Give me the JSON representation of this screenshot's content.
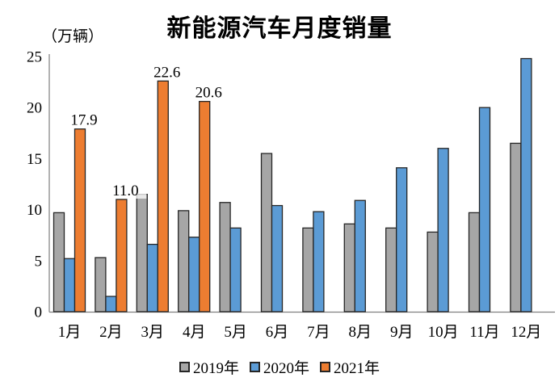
{
  "title": "新能源汽车月度销量",
  "axis_unit_label": "（万辆）",
  "chart_data": {
    "type": "bar",
    "title": "新能源汽车月度销量",
    "ylabel": "万辆",
    "xlabel": "",
    "categories": [
      "1月",
      "2月",
      "3月",
      "4月",
      "5月",
      "6月",
      "7月",
      "8月",
      "9月",
      "10月",
      "11月",
      "12月"
    ],
    "series": [
      {
        "name": "2019年",
        "color": "#A6A6A6",
        "values": [
          9.7,
          5.3,
          11.5,
          9.9,
          10.7,
          15.5,
          8.2,
          8.6,
          8.2,
          7.8,
          9.7,
          16.5
        ]
      },
      {
        "name": "2020年",
        "color": "#5B9BD5",
        "values": [
          5.2,
          1.5,
          6.6,
          7.3,
          8.2,
          10.4,
          9.8,
          10.9,
          14.1,
          16.0,
          20.0,
          24.8
        ]
      },
      {
        "name": "2021年",
        "color": "#ED7D31",
        "values": [
          17.9,
          11.0,
          22.6,
          20.6
        ],
        "data_labels": [
          "17.9",
          "11.0",
          "22.6",
          "20.6"
        ]
      }
    ],
    "ylim": [
      0,
      25
    ],
    "yticks": [
      0,
      5,
      10,
      15,
      20,
      25
    ],
    "grid": false,
    "legend_position": "bottom",
    "bar_outline_color": "#262626",
    "axis_color": "#808080"
  }
}
